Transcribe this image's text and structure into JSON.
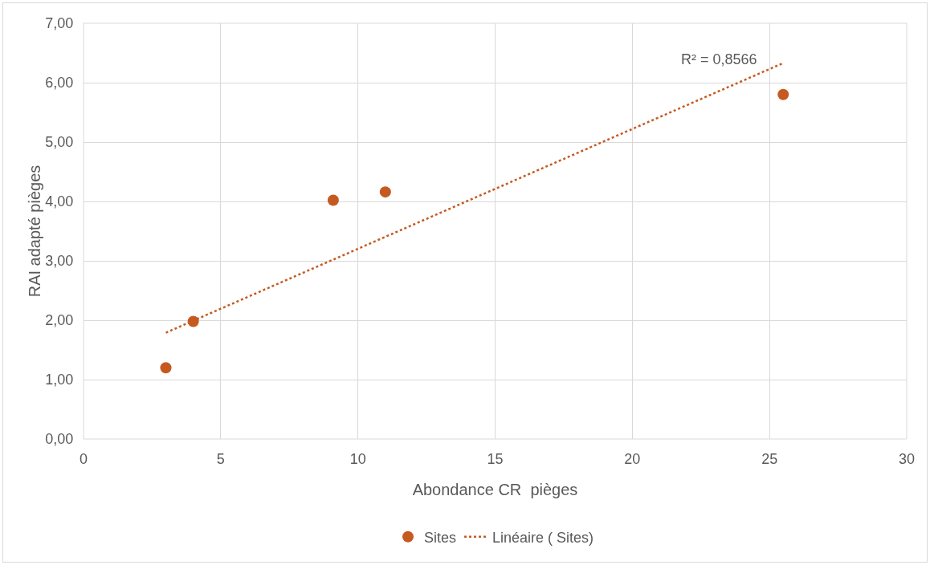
{
  "chart_data": {
    "type": "scatter",
    "xlabel": "Abondance CR  pièges",
    "ylabel": "RAI adapté pièges",
    "x": [
      3,
      4,
      9.1,
      11,
      25.5
    ],
    "series": [
      {
        "name": "Sites",
        "color": "#c55a20",
        "values": [
          1.2,
          1.98,
          4.02,
          4.16,
          5.8
        ],
        "marker": "circle"
      },
      {
        "name": "Linéaire ( Sites)",
        "type": "line",
        "color": "#c55a20",
        "x": [
          3,
          25.5
        ],
        "values": [
          1.79,
          6.33
        ],
        "line_style": "dotted",
        "marker": "none"
      }
    ],
    "xlim": [
      0,
      30
    ],
    "xticks": [
      0,
      5,
      10,
      15,
      20,
      25,
      30
    ],
    "ylim": [
      0,
      7
    ],
    "yticks": [
      {
        "value": 0,
        "label": "0,00"
      },
      {
        "value": 1,
        "label": "1,00"
      },
      {
        "value": 2,
        "label": "2,00"
      },
      {
        "value": 3,
        "label": "3,00"
      },
      {
        "value": 4,
        "label": "4,00"
      },
      {
        "value": 5,
        "label": "5,00"
      },
      {
        "value": 6,
        "label": "6,00"
      },
      {
        "value": 7,
        "label": "7,00"
      }
    ],
    "annotations": [
      "R² = 0,8566"
    ],
    "grid": true,
    "legend": "bottom"
  }
}
